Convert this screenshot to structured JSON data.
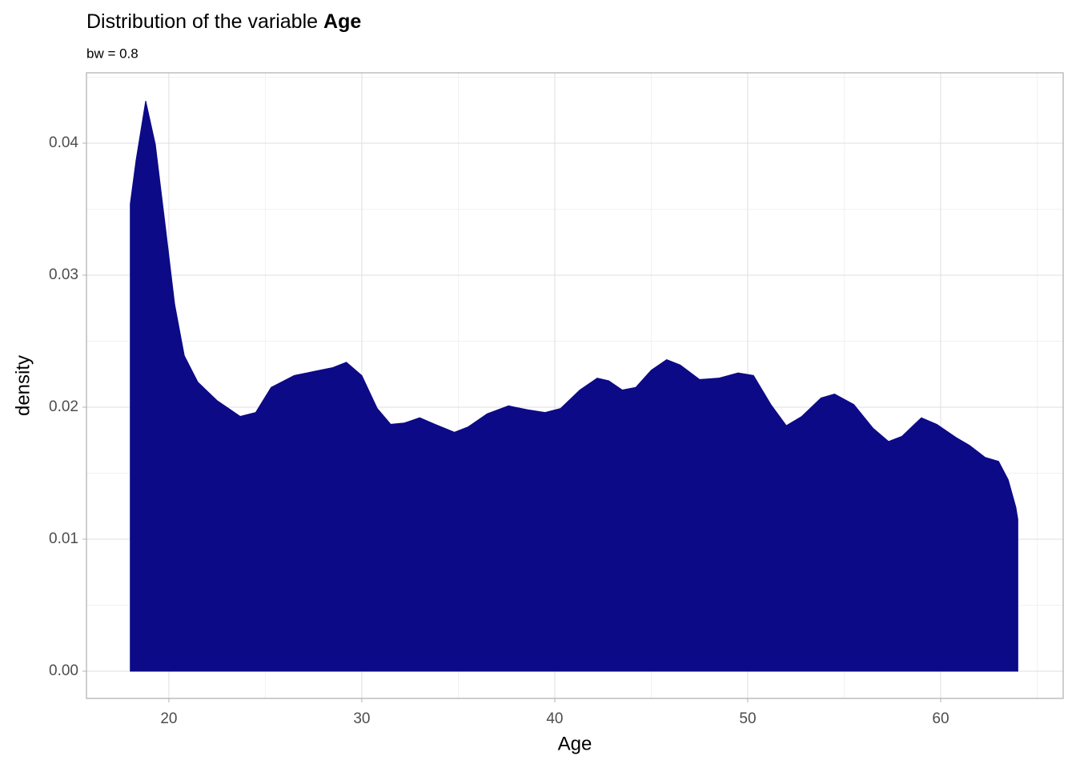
{
  "chart_data": {
    "type": "area",
    "title": "Distribution of the variable",
    "title_emphasis": "Age",
    "subtitle": "bw = 0.8",
    "x_label": "Age",
    "y_label": "density",
    "color": "#0c0a87",
    "grid": true,
    "x": [
      18,
      18.3,
      18.8,
      19.3,
      19.8,
      20.3,
      20.8,
      21.5,
      22.5,
      23.7,
      24.5,
      25.3,
      26.5,
      27.5,
      28.5,
      29.2,
      30,
      30.8,
      31.5,
      32.2,
      33,
      33.8,
      34.8,
      35.5,
      36.5,
      37.6,
      38.6,
      39.5,
      40.3,
      41.3,
      42.2,
      42.8,
      43.5,
      44.2,
      45,
      45.8,
      46.5,
      47.5,
      48.5,
      49.5,
      50.3,
      51.2,
      52,
      52.8,
      53.8,
      54.5,
      55.5,
      56.5,
      57.3,
      58,
      59,
      59.8,
      60.8,
      61.5,
      62.3,
      63,
      63.5,
      63.9,
      64
    ],
    "values": [
      0.0354,
      0.0387,
      0.0432,
      0.0399,
      0.0339,
      0.0278,
      0.0239,
      0.0219,
      0.0205,
      0.0193,
      0.0196,
      0.0215,
      0.0224,
      0.0227,
      0.023,
      0.0234,
      0.0224,
      0.0199,
      0.0187,
      0.0188,
      0.0192,
      0.0187,
      0.0181,
      0.0185,
      0.0195,
      0.0201,
      0.0198,
      0.0196,
      0.0199,
      0.0213,
      0.0222,
      0.022,
      0.0213,
      0.0215,
      0.0228,
      0.0236,
      0.0232,
      0.0221,
      0.0222,
      0.0226,
      0.0224,
      0.0202,
      0.0186,
      0.0193,
      0.0207,
      0.021,
      0.0202,
      0.0184,
      0.0174,
      0.0178,
      0.0192,
      0.0187,
      0.0177,
      0.0171,
      0.0162,
      0.0159,
      0.0145,
      0.0124,
      0.0115
    ],
    "xlim": [
      15.73,
      66.35
    ],
    "xticks": [
      20,
      30,
      40,
      50,
      60
    ],
    "ylim": [
      -0.00206,
      0.04533
    ],
    "yticks": [
      {
        "value": 0,
        "label": "0.00"
      },
      {
        "value": 0.01,
        "label": "0.01"
      },
      {
        "value": 0.02,
        "label": "0.02"
      },
      {
        "value": 0.03,
        "label": "0.03"
      },
      {
        "value": 0.04,
        "label": "0.04"
      }
    ]
  }
}
